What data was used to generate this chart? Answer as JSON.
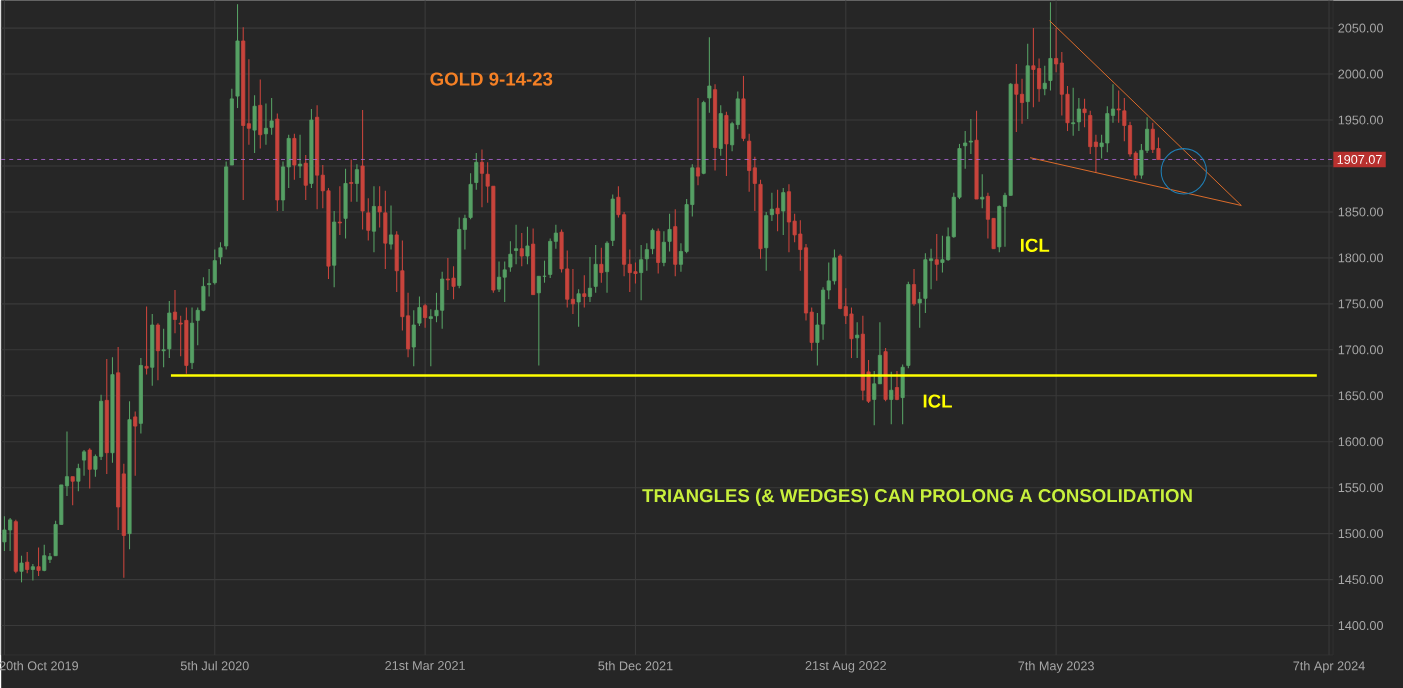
{
  "chart_data": {
    "type": "candlestick",
    "title": "GOLD 9-14-23",
    "x": [
      "2019-10-20",
      "2019-10-27",
      "2019-11-03",
      "2019-11-10",
      "2019-11-17",
      "2019-11-24",
      "2019-12-01",
      "2019-12-08",
      "2019-12-15",
      "2019-12-22",
      "2019-12-29",
      "2020-01-05",
      "2020-01-12",
      "2020-01-19",
      "2020-01-26",
      "2020-02-02",
      "2020-02-09",
      "2020-02-16",
      "2020-02-23",
      "2020-03-01",
      "2020-03-08",
      "2020-03-15",
      "2020-03-22",
      "2020-03-29",
      "2020-04-05",
      "2020-04-12",
      "2020-04-19",
      "2020-04-26",
      "2020-05-03",
      "2020-05-10",
      "2020-05-17",
      "2020-05-24",
      "2020-05-31",
      "2020-06-07",
      "2020-06-14",
      "2020-06-21",
      "2020-06-28",
      "2020-07-05",
      "2020-07-12",
      "2020-07-19",
      "2020-07-26",
      "2020-08-02",
      "2020-08-09",
      "2020-08-16",
      "2020-08-23",
      "2020-08-30",
      "2020-09-06",
      "2020-09-13",
      "2020-09-20",
      "2020-09-27",
      "2020-10-04",
      "2020-10-11",
      "2020-10-18",
      "2020-10-25",
      "2020-11-01",
      "2020-11-08",
      "2020-11-15",
      "2020-11-22",
      "2020-11-29",
      "2020-12-06",
      "2020-12-13",
      "2020-12-20",
      "2020-12-27",
      "2021-01-03",
      "2021-01-10",
      "2021-01-17",
      "2021-01-24",
      "2021-01-31",
      "2021-02-07",
      "2021-02-14",
      "2021-02-21",
      "2021-02-28",
      "2021-03-07",
      "2021-03-14",
      "2021-03-21",
      "2021-03-28",
      "2021-04-04",
      "2021-04-11",
      "2021-04-18",
      "2021-04-25",
      "2021-05-02",
      "2021-05-09",
      "2021-05-16",
      "2021-05-23",
      "2021-05-30",
      "2021-06-06",
      "2021-06-13",
      "2021-06-20",
      "2021-06-27",
      "2021-07-04",
      "2021-07-11",
      "2021-07-18",
      "2021-07-25",
      "2021-08-01",
      "2021-08-08",
      "2021-08-15",
      "2021-08-22",
      "2021-08-29",
      "2021-09-05",
      "2021-09-12",
      "2021-09-19",
      "2021-09-26",
      "2021-10-03",
      "2021-10-10",
      "2021-10-17",
      "2021-10-24",
      "2021-10-31",
      "2021-11-07",
      "2021-11-14",
      "2021-11-21",
      "2021-11-28",
      "2021-12-05",
      "2021-12-12",
      "2021-12-19",
      "2021-12-26",
      "2022-01-02",
      "2022-01-09",
      "2022-01-16",
      "2022-01-23",
      "2022-01-30",
      "2022-02-06",
      "2022-02-13",
      "2022-02-20",
      "2022-02-27",
      "2022-03-06",
      "2022-03-13",
      "2022-03-20",
      "2022-03-27",
      "2022-04-03",
      "2022-04-10",
      "2022-04-17",
      "2022-04-24",
      "2022-05-01",
      "2022-05-08",
      "2022-05-15",
      "2022-05-22",
      "2022-05-29",
      "2022-06-05",
      "2022-06-12",
      "2022-06-19",
      "2022-06-26",
      "2022-07-03",
      "2022-07-10",
      "2022-07-17",
      "2022-07-24",
      "2022-07-31",
      "2022-08-07",
      "2022-08-14",
      "2022-08-21",
      "2022-08-28",
      "2022-09-04",
      "2022-09-11",
      "2022-09-18",
      "2022-09-25",
      "2022-10-02",
      "2022-10-09",
      "2022-10-16",
      "2022-10-23",
      "2022-10-30",
      "2022-11-06",
      "2022-11-13",
      "2022-11-20",
      "2022-11-27",
      "2022-12-04",
      "2022-12-11",
      "2022-12-18",
      "2022-12-25",
      "2023-01-01",
      "2023-01-08",
      "2023-01-15",
      "2023-01-22",
      "2023-01-29",
      "2023-02-05",
      "2023-02-12",
      "2023-02-19",
      "2023-02-26",
      "2023-03-05",
      "2023-03-12",
      "2023-03-19",
      "2023-03-26",
      "2023-04-02",
      "2023-04-09",
      "2023-04-16",
      "2023-04-23",
      "2023-04-30",
      "2023-05-07",
      "2023-05-14",
      "2023-05-21",
      "2023-05-28",
      "2023-06-04",
      "2023-06-11",
      "2023-06-18",
      "2023-06-25",
      "2023-07-02",
      "2023-07-09",
      "2023-07-16",
      "2023-07-23",
      "2023-07-30",
      "2023-08-06",
      "2023-08-13",
      "2023-08-20",
      "2023-08-27",
      "2023-09-03",
      "2023-09-10"
    ],
    "ohlc": [
      [
        1491,
        1519,
        1481,
        1504
      ],
      [
        1504,
        1517,
        1481,
        1515
      ],
      [
        1513,
        1515,
        1457,
        1459
      ],
      [
        1459,
        1476,
        1447,
        1468
      ],
      [
        1469,
        1480,
        1457,
        1461
      ],
      [
        1461,
        1467,
        1449,
        1464
      ],
      [
        1464,
        1485,
        1454,
        1460
      ],
      [
        1460,
        1488,
        1459,
        1476
      ],
      [
        1472,
        1479,
        1468,
        1475
      ],
      [
        1476,
        1514,
        1476,
        1510
      ],
      [
        1510,
        1553,
        1510,
        1553
      ],
      [
        1552,
        1611,
        1541,
        1562
      ],
      [
        1562,
        1562,
        1531,
        1557
      ],
      [
        1557,
        1576,
        1546,
        1571
      ],
      [
        1580,
        1591,
        1563,
        1589
      ],
      [
        1591,
        1593,
        1549,
        1570
      ],
      [
        1570,
        1586,
        1562,
        1584
      ],
      [
        1584,
        1651,
        1580,
        1644
      ],
      [
        1645,
        1690,
        1565,
        1588
      ],
      [
        1588,
        1692,
        1577,
        1673
      ],
      [
        1675,
        1703,
        1504,
        1529
      ],
      [
        1565,
        1576,
        1452,
        1498
      ],
      [
        1500,
        1644,
        1483,
        1624
      ],
      [
        1627,
        1633,
        1563,
        1617
      ],
      [
        1620,
        1691,
        1609,
        1683
      ],
      [
        1682,
        1747,
        1673,
        1680
      ],
      [
        1681,
        1739,
        1661,
        1727
      ],
      [
        1727,
        1729,
        1667,
        1699
      ],
      [
        1699,
        1723,
        1681,
        1700
      ],
      [
        1701,
        1753,
        1691,
        1740
      ],
      [
        1741,
        1765,
        1718,
        1733
      ],
      [
        1729,
        1737,
        1693,
        1728
      ],
      [
        1732,
        1746,
        1674,
        1683
      ],
      [
        1686,
        1746,
        1679,
        1729
      ],
      [
        1732,
        1746,
        1705,
        1743
      ],
      [
        1743,
        1779,
        1742,
        1769
      ],
      [
        1771,
        1788,
        1758,
        1772
      ],
      [
        1773,
        1809,
        1771,
        1797
      ],
      [
        1801,
        1817,
        1793,
        1811
      ],
      [
        1813,
        1905,
        1809,
        1899
      ],
      [
        1901,
        1984,
        1901,
        1973
      ],
      [
        1976,
        2076,
        1963,
        2036
      ],
      [
        2036,
        2051,
        1863,
        1944
      ],
      [
        1946,
        2016,
        1923,
        1941
      ],
      [
        1939,
        1977,
        1914,
        1965
      ],
      [
        1966,
        1994,
        1919,
        1934
      ],
      [
        1935,
        1968,
        1923,
        1941
      ],
      [
        1942,
        1974,
        1934,
        1949
      ],
      [
        1951,
        1957,
        1851,
        1863
      ],
      [
        1863,
        1905,
        1851,
        1899
      ],
      [
        1899,
        1934,
        1876,
        1930
      ],
      [
        1930,
        1935,
        1885,
        1901
      ],
      [
        1900,
        1934,
        1887,
        1902
      ],
      [
        1903,
        1912,
        1863,
        1879
      ],
      [
        1881,
        1962,
        1876,
        1950
      ],
      [
        1953,
        1966,
        1853,
        1890
      ],
      [
        1890,
        1901,
        1854,
        1873
      ],
      [
        1873,
        1876,
        1777,
        1791
      ],
      [
        1792,
        1851,
        1768,
        1839
      ],
      [
        1839,
        1878,
        1825,
        1838
      ],
      [
        1843,
        1897,
        1821,
        1881
      ],
      [
        1882,
        1907,
        1861,
        1881
      ],
      [
        1881,
        1902,
        1861,
        1896
      ],
      [
        1900,
        1961,
        1831,
        1851
      ],
      [
        1849,
        1865,
        1819,
        1830
      ],
      [
        1829,
        1878,
        1806,
        1856
      ],
      [
        1856,
        1878,
        1833,
        1850
      ],
      [
        1849,
        1873,
        1788,
        1816
      ],
      [
        1815,
        1857,
        1809,
        1825
      ],
      [
        1825,
        1829,
        1763,
        1786
      ],
      [
        1786,
        1819,
        1721,
        1736
      ],
      [
        1737,
        1762,
        1692,
        1701
      ],
      [
        1703,
        1743,
        1682,
        1727
      ],
      [
        1729,
        1758,
        1726,
        1746
      ],
      [
        1748,
        1750,
        1724,
        1735
      ],
      [
        1734,
        1744,
        1682,
        1736
      ],
      [
        1737,
        1762,
        1730,
        1743
      ],
      [
        1743,
        1785,
        1723,
        1777
      ],
      [
        1777,
        1800,
        1765,
        1776
      ],
      [
        1778,
        1791,
        1755,
        1769
      ],
      [
        1770,
        1844,
        1767,
        1831
      ],
      [
        1831,
        1847,
        1809,
        1843
      ],
      [
        1844,
        1892,
        1842,
        1880
      ],
      [
        1882,
        1914,
        1874,
        1904
      ],
      [
        1904,
        1918,
        1855,
        1892
      ],
      [
        1891,
        1904,
        1860,
        1878
      ],
      [
        1878,
        1878,
        1762,
        1765
      ],
      [
        1766,
        1796,
        1763,
        1779
      ],
      [
        1779,
        1796,
        1752,
        1787
      ],
      [
        1790,
        1818,
        1785,
        1804
      ],
      [
        1808,
        1836,
        1793,
        1810
      ],
      [
        1810,
        1827,
        1791,
        1802
      ],
      [
        1802,
        1834,
        1793,
        1813
      ],
      [
        1815,
        1832,
        1760,
        1760
      ],
      [
        1762,
        1780,
        1683,
        1780
      ],
      [
        1780,
        1797,
        1773,
        1780
      ],
      [
        1782,
        1821,
        1778,
        1818
      ],
      [
        1818,
        1836,
        1810,
        1827
      ],
      [
        1828,
        1831,
        1784,
        1788
      ],
      [
        1788,
        1808,
        1746,
        1755
      ],
      [
        1755,
        1788,
        1739,
        1750
      ],
      [
        1752,
        1766,
        1725,
        1761
      ],
      [
        1761,
        1781,
        1746,
        1758
      ],
      [
        1758,
        1801,
        1752,
        1767
      ],
      [
        1769,
        1814,
        1762,
        1793
      ],
      [
        1793,
        1811,
        1773,
        1784
      ],
      [
        1785,
        1818,
        1762,
        1816
      ],
      [
        1819,
        1869,
        1813,
        1864
      ],
      [
        1866,
        1878,
        1844,
        1847
      ],
      [
        1847,
        1850,
        1780,
        1793
      ],
      [
        1793,
        1809,
        1763,
        1784
      ],
      [
        1785,
        1795,
        1772,
        1783
      ],
      [
        1784,
        1814,
        1754,
        1798
      ],
      [
        1799,
        1816,
        1786,
        1809
      ],
      [
        1810,
        1832,
        1804,
        1830
      ],
      [
        1829,
        1832,
        1783,
        1795
      ],
      [
        1795,
        1829,
        1791,
        1817
      ],
      [
        1818,
        1848,
        1807,
        1831
      ],
      [
        1834,
        1853,
        1780,
        1793
      ],
      [
        1793,
        1816,
        1785,
        1807
      ],
      [
        1807,
        1864,
        1805,
        1858
      ],
      [
        1858,
        1902,
        1845,
        1898
      ],
      [
        1898,
        1974,
        1879,
        1889
      ],
      [
        1892,
        1971,
        1891,
        1969
      ],
      [
        1974,
        2040,
        1958,
        1987
      ],
      [
        1983,
        1989,
        1895,
        1920
      ],
      [
        1919,
        1966,
        1911,
        1957
      ],
      [
        1955,
        1959,
        1889,
        1924
      ],
      [
        1923,
        1948,
        1916,
        1946
      ],
      [
        1945,
        1981,
        1940,
        1973
      ],
      [
        1973,
        1998,
        1927,
        1930
      ],
      [
        1927,
        1935,
        1872,
        1895
      ],
      [
        1898,
        1910,
        1851,
        1881
      ],
      [
        1880,
        1885,
        1799,
        1810
      ],
      [
        1811,
        1850,
        1786,
        1846
      ],
      [
        1847,
        1871,
        1840,
        1853
      ],
      [
        1854,
        1874,
        1829,
        1848
      ],
      [
        1851,
        1876,
        1825,
        1871
      ],
      [
        1872,
        1880,
        1806,
        1839
      ],
      [
        1840,
        1848,
        1817,
        1825
      ],
      [
        1826,
        1841,
        1786,
        1809
      ],
      [
        1811,
        1815,
        1732,
        1740
      ],
      [
        1741,
        1746,
        1699,
        1708
      ],
      [
        1708,
        1740,
        1683,
        1727
      ],
      [
        1728,
        1768,
        1711,
        1765
      ],
      [
        1765,
        1795,
        1755,
        1775
      ],
      [
        1775,
        1809,
        1771,
        1800
      ],
      [
        1802,
        1804,
        1744,
        1745
      ],
      [
        1747,
        1767,
        1728,
        1737
      ],
      [
        1739,
        1746,
        1691,
        1712
      ],
      [
        1713,
        1730,
        1691,
        1716
      ],
      [
        1717,
        1737,
        1645,
        1656
      ],
      [
        1676,
        1689,
        1642,
        1644
      ],
      [
        1646,
        1677,
        1618,
        1663
      ],
      [
        1663,
        1730,
        1663,
        1694
      ],
      [
        1698,
        1702,
        1644,
        1646
      ],
      [
        1646,
        1676,
        1619,
        1656
      ],
      [
        1659,
        1677,
        1645,
        1646
      ],
      [
        1648,
        1684,
        1619,
        1681
      ],
      [
        1683,
        1774,
        1680,
        1771
      ],
      [
        1771,
        1788,
        1748,
        1750
      ],
      [
        1751,
        1763,
        1724,
        1755
      ],
      [
        1756,
        1805,
        1740,
        1798
      ],
      [
        1797,
        1810,
        1766,
        1799
      ],
      [
        1798,
        1826,
        1775,
        1793
      ],
      [
        1795,
        1824,
        1784,
        1798
      ],
      [
        1798,
        1833,
        1797,
        1823
      ],
      [
        1823,
        1871,
        1822,
        1866
      ],
      [
        1866,
        1924,
        1864,
        1919
      ],
      [
        1922,
        1938,
        1897,
        1925
      ],
      [
        1926,
        1951,
        1913,
        1927
      ],
      [
        1928,
        1960,
        1864,
        1864
      ],
      [
        1864,
        1891,
        1854,
        1866
      ],
      [
        1867,
        1871,
        1821,
        1842
      ],
      [
        1843,
        1843,
        1810,
        1810
      ],
      [
        1812,
        1857,
        1806,
        1856
      ],
      [
        1856,
        1871,
        1812,
        1868
      ],
      [
        1868,
        1990,
        1868,
        1989
      ],
      [
        1989,
        2011,
        1937,
        1978
      ],
      [
        1978,
        1995,
        1946,
        1969
      ],
      [
        1970,
        2033,
        1951,
        2009
      ],
      [
        2009,
        2050,
        1964,
        2005
      ],
      [
        2006,
        2017,
        1970,
        1984
      ],
      [
        1984,
        2009,
        1977,
        1990
      ],
      [
        1993,
        2078,
        1982,
        2017
      ],
      [
        2017,
        2050,
        2002,
        2011
      ],
      [
        2012,
        2024,
        1955,
        1978
      ],
      [
        1978,
        1987,
        1938,
        1947
      ],
      [
        1946,
        1985,
        1933,
        1947
      ],
      [
        1948,
        1974,
        1938,
        1962
      ],
      [
        1962,
        1973,
        1942,
        1958
      ],
      [
        1955,
        1960,
        1913,
        1921
      ],
      [
        1926,
        1934,
        1893,
        1921
      ],
      [
        1921,
        1934,
        1908,
        1925
      ],
      [
        1925,
        1965,
        1915,
        1957
      ],
      [
        1955,
        1989,
        1947,
        1962
      ],
      [
        1962,
        1982,
        1947,
        1961
      ],
      [
        1960,
        1974,
        1927,
        1944
      ],
      [
        1944,
        1948,
        1910,
        1913
      ],
      [
        1914,
        1916,
        1886,
        1890
      ],
      [
        1890,
        1924,
        1886,
        1917
      ],
      [
        1917,
        1953,
        1914,
        1940
      ],
      [
        1940,
        1947,
        1914,
        1918
      ],
      [
        1919,
        1931,
        1907,
        1907
      ]
    ],
    "series": [
      {
        "type": "line",
        "color": "#ffff00",
        "x": [
          "2020-05-12",
          "2024-03-23"
        ],
        "values": [
          1672,
          1672
        ]
      },
      {
        "type": "line",
        "color": "#e8702a",
        "x": [
          "2023-04-29",
          "2023-12-21"
        ],
        "values": [
          2058,
          1857
        ]
      },
      {
        "type": "line",
        "color": "#e8702a",
        "x": [
          "2023-04-05",
          "2023-12-21"
        ],
        "values": [
          1909,
          1857
        ]
      }
    ],
    "xlim": [
      "2019-10-16",
      "2024-04-12"
    ],
    "ylim": [
      1368,
      2080
    ],
    "xticks": [
      {
        "value": "2019-10-20",
        "label": "20th Oct 2019"
      },
      {
        "value": "2020-07-05",
        "label": "5th Jul 2020"
      },
      {
        "value": "2021-03-21",
        "label": "21st Mar 2021"
      },
      {
        "value": "2021-12-05",
        "label": "5th Dec 2021"
      },
      {
        "value": "2022-08-21",
        "label": "21st Aug 2022"
      },
      {
        "value": "2023-05-07",
        "label": "7th May 2023"
      },
      {
        "value": "2024-04-07",
        "label": "7th Apr 2024"
      }
    ],
    "yticks": [
      {
        "value": 1400,
        "label": "1400.00"
      },
      {
        "value": 1450,
        "label": "1450.00"
      },
      {
        "value": 1500,
        "label": "1500.00"
      },
      {
        "value": 1550,
        "label": "1550.00"
      },
      {
        "value": 1600,
        "label": "1600.00"
      },
      {
        "value": 1650,
        "label": "1650.00"
      },
      {
        "value": 1700,
        "label": "1700.00"
      },
      {
        "value": 1750,
        "label": "1750.00"
      },
      {
        "value": 1800,
        "label": "1800.00"
      },
      {
        "value": 1850,
        "label": "1850.00"
      },
      {
        "value": 1900,
        "label": null
      },
      {
        "value": 1950,
        "label": "1950.00"
      },
      {
        "value": 2000,
        "label": "2000.00"
      },
      {
        "value": 2050,
        "label": "2050.00"
      }
    ],
    "grid": true,
    "ref_lines": [
      {
        "axis": "y",
        "value": 1907.07,
        "label": "1907.07",
        "color": "#b36bdc",
        "line_style": "dashed"
      }
    ],
    "annotations": [
      "ICL",
      "ICL",
      "TRIANGLES (& WEDGES)  CAN  PROLONG A CONSOLIDATION"
    ]
  }
}
